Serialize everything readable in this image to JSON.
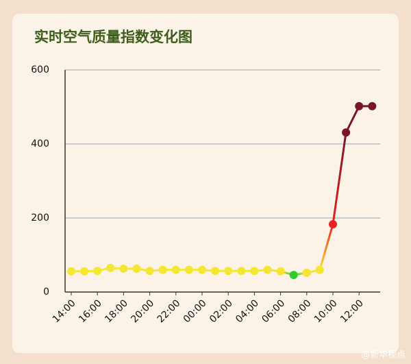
{
  "chart_data": {
    "type": "line",
    "title": "实时空气质量指数变化图",
    "categories": [
      "14:00",
      null,
      "16:00",
      null,
      "18:00",
      null,
      "20:00",
      null,
      "22:00",
      null,
      "00:00",
      null,
      "02:00",
      null,
      "04:00",
      null,
      "06:00",
      null,
      "08:00",
      null,
      "10:00",
      null,
      "12:00",
      null
    ],
    "values": [
      56,
      56,
      57,
      65,
      63,
      63,
      57,
      60,
      60,
      60,
      60,
      57,
      57,
      57,
      57,
      60,
      56,
      46,
      52,
      60,
      183,
      431,
      502,
      502
    ],
    "point_colors": [
      "#f5e633",
      "#f5e633",
      "#f5e633",
      "#f5e633",
      "#f5e633",
      "#f5e633",
      "#f5e633",
      "#f5e633",
      "#f5e633",
      "#f5e633",
      "#f5e633",
      "#f5e633",
      "#f5e633",
      "#f5e633",
      "#f5e633",
      "#f5e633",
      "#f5e633",
      "#2fcc2f",
      "#f5e633",
      "#f5e633",
      "#e8231f",
      "#7a1428",
      "#7a1428",
      "#7a1428"
    ],
    "ylim": [
      0,
      600
    ],
    "yticks": [
      0,
      200,
      400,
      600
    ],
    "grid": true,
    "watermark": "@新华视点"
  }
}
